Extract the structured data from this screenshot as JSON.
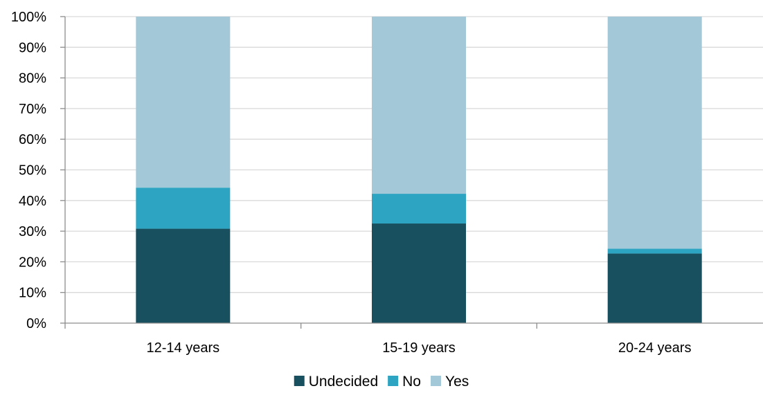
{
  "chart_data": {
    "type": "bar",
    "stacked": true,
    "categories": [
      "12-14 years",
      "15-19 years",
      "20-24 years"
    ],
    "series": [
      {
        "name": "Undecided",
        "color": "#18505f",
        "values": [
          30.8,
          32.5,
          22.7
        ]
      },
      {
        "name": "No",
        "color": "#2da4c1",
        "values": [
          13.4,
          9.7,
          1.6
        ]
      },
      {
        "name": "Yes",
        "color": "#a3c8d7",
        "values": [
          55.8,
          57.8,
          75.7
        ]
      }
    ],
    "title": "",
    "xlabel": "",
    "ylabel": "",
    "ylim": [
      0,
      100
    ],
    "yticks": [
      0,
      10,
      20,
      30,
      40,
      50,
      60,
      70,
      80,
      90,
      100
    ],
    "ytick_format": "%",
    "grid": true,
    "legend_position": "bottom"
  }
}
